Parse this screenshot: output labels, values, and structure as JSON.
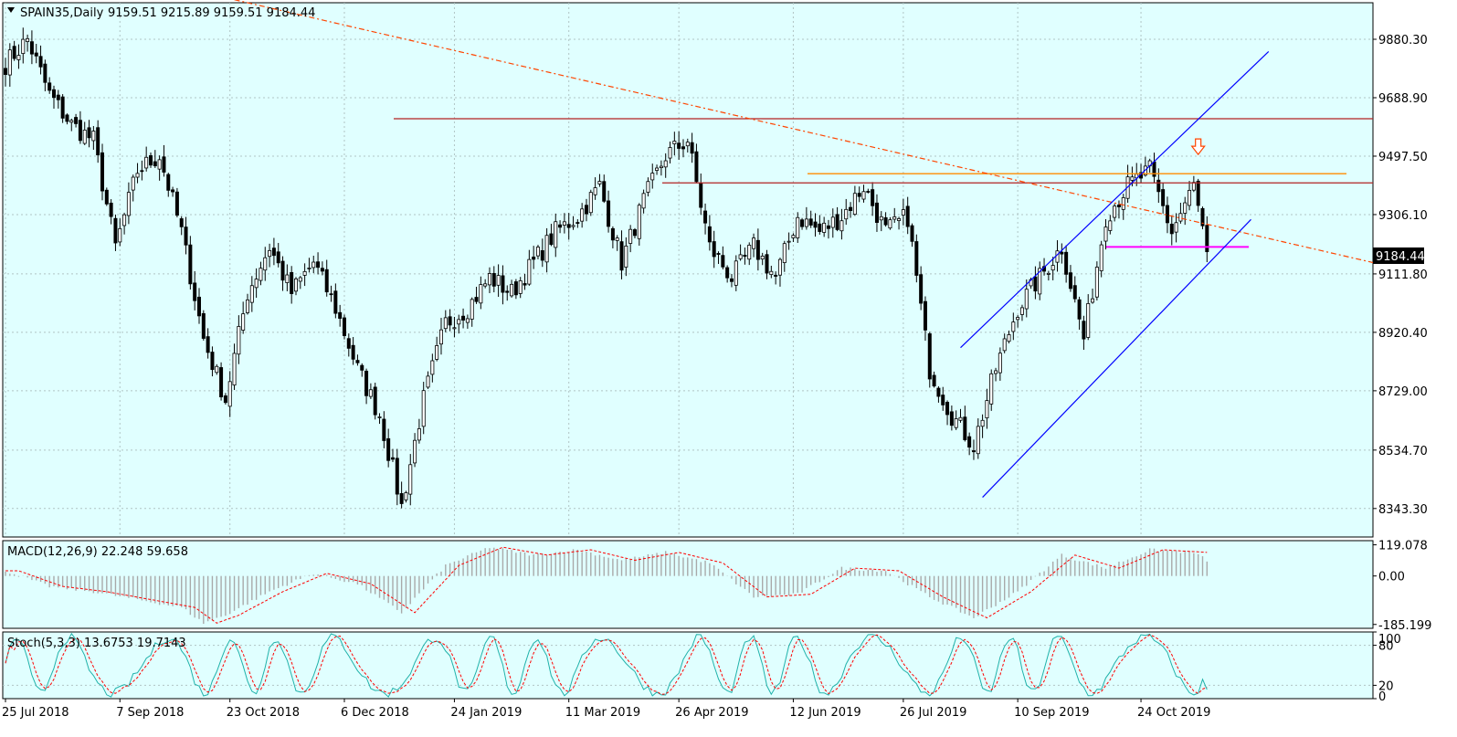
{
  "window": {
    "symbol_label": "SPAIN35,Daily",
    "ohlc_label": "9159.51 9215.89 9159.51 9184.44",
    "current_price": "9184.44"
  },
  "colors": {
    "background": "#ffffff",
    "plot_bg": "#e0ffff",
    "bull_candle": "#ffffff",
    "bear_candle": "#000000",
    "resistance_line": "#b22222",
    "orange_line": "#ff8c00",
    "trendline": "#ff4500",
    "channel": "#0000ff",
    "support_line": "#ff00ff",
    "macd_hist": "#a9a9a9",
    "macd_signal": "#ff0000",
    "stoch_main": "#20b2aa",
    "stoch_signal": "#ff0000"
  },
  "chart_data": [
    {
      "type": "candlestick",
      "name": "price",
      "title": "SPAIN35,Daily",
      "ylim": [
        8250,
        10000
      ],
      "y_ticks": [
        "9880.30",
        "9688.90",
        "9497.50",
        "9306.10",
        "9111.80",
        "8920.40",
        "8729.00",
        "8534.70",
        "8343.30"
      ],
      "x_ticks": [
        "25 Jul 2018",
        "7 Sep 2018",
        "23 Oct 2018",
        "6 Dec 2018",
        "24 Jan 2019",
        "11 Mar 2019",
        "26 Apr 2019",
        "12 Jun 2019",
        "26 Jul 2019",
        "10 Sep 2019",
        "24 Oct 2019"
      ],
      "anchors": [
        [
          0,
          9800
        ],
        [
          5,
          9880
        ],
        [
          10,
          9700
        ],
        [
          15,
          9600
        ],
        [
          20,
          9550
        ],
        [
          25,
          9200
        ],
        [
          30,
          9450
        ],
        [
          35,
          9500
        ],
        [
          40,
          9250
        ],
        [
          45,
          8900
        ],
        [
          50,
          8700
        ],
        [
          55,
          9050
        ],
        [
          60,
          9200
        ],
        [
          65,
          9050
        ],
        [
          70,
          9150
        ],
        [
          75,
          9000
        ],
        [
          80,
          8800
        ],
        [
          85,
          8650
        ],
        [
          90,
          8350
        ],
        [
          95,
          8700
        ],
        [
          100,
          8950
        ],
        [
          105,
          9000
        ],
        [
          110,
          9100
        ],
        [
          115,
          9050
        ],
        [
          120,
          9150
        ],
        [
          125,
          9250
        ],
        [
          130,
          9300
        ],
        [
          135,
          9400
        ],
        [
          140,
          9150
        ],
        [
          145,
          9350
        ],
        [
          150,
          9500
        ],
        [
          155,
          9550
        ],
        [
          160,
          9200
        ],
        [
          165,
          9100
        ],
        [
          170,
          9200
        ],
        [
          175,
          9100
        ],
        [
          180,
          9300
        ],
        [
          185,
          9250
        ],
        [
          190,
          9300
        ],
        [
          195,
          9400
        ],
        [
          200,
          9250
        ],
        [
          205,
          9300
        ],
        [
          210,
          8800
        ],
        [
          215,
          8650
        ],
        [
          220,
          8550
        ],
        [
          225,
          8800
        ],
        [
          230,
          9000
        ],
        [
          235,
          9100
        ],
        [
          240,
          9200
        ],
        [
          245,
          8900
        ],
        [
          250,
          9300
        ],
        [
          255,
          9400
        ],
        [
          260,
          9450
        ],
        [
          265,
          9250
        ],
        [
          270,
          9400
        ],
        [
          273,
          9180
        ]
      ],
      "annotations": {
        "resistance_upper": 9620,
        "resistance_lower": 9410,
        "orange_level": 9440,
        "support_level": 9200,
        "downtrend": [
          [
            52,
            10010
          ],
          [
            311,
            9148
          ]
        ],
        "channel_lower": [
          [
            222,
            8380
          ],
          [
            283,
            9290
          ]
        ],
        "channel_upper": [
          [
            217,
            8870
          ],
          [
            287,
            9840
          ]
        ],
        "sell_arrow_at": [
          271,
          9500
        ]
      }
    },
    {
      "type": "line",
      "name": "macd",
      "title": "MACD(12,26,9) 22.248 59.658",
      "ylim": [
        -200,
        135
      ],
      "y_ticks": [
        "119.078",
        "0.00",
        "-185.199"
      ],
      "anchors": [
        [
          0,
          20
        ],
        [
          10,
          -40
        ],
        [
          20,
          -60
        ],
        [
          30,
          -90
        ],
        [
          40,
          -120
        ],
        [
          45,
          -180
        ],
        [
          50,
          -150
        ],
        [
          60,
          -60
        ],
        [
          70,
          10
        ],
        [
          80,
          -30
        ],
        [
          90,
          -140
        ],
        [
          100,
          40
        ],
        [
          110,
          110
        ],
        [
          120,
          80
        ],
        [
          130,
          100
        ],
        [
          140,
          60
        ],
        [
          150,
          90
        ],
        [
          160,
          50
        ],
        [
          170,
          -80
        ],
        [
          180,
          -70
        ],
        [
          190,
          30
        ],
        [
          200,
          20
        ],
        [
          210,
          -80
        ],
        [
          220,
          -160
        ],
        [
          230,
          -60
        ],
        [
          240,
          80
        ],
        [
          250,
          30
        ],
        [
          260,
          100
        ],
        [
          270,
          90
        ],
        [
          273,
          60
        ]
      ]
    },
    {
      "type": "line",
      "name": "stochastic",
      "title": "Stoch(5,3,3) 13.6753 19.7143",
      "ylim": [
        0,
        100
      ],
      "y_ticks": [
        "100",
        "80",
        "20",
        "0"
      ]
    }
  ]
}
